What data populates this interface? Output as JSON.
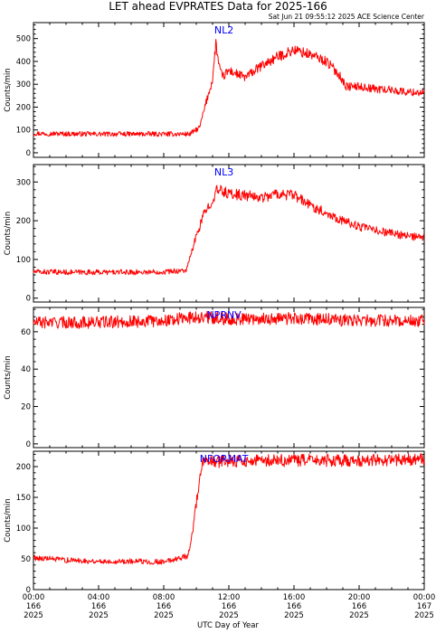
{
  "title": "LET ahead EVPRATES Data for 2025-166",
  "subtitle": "Sat Jun 21 09:55:12 2025 ACE Science Center",
  "xlabel": "UTC Day of Year",
  "colors": {
    "series": "#ff0000",
    "panel_label": "#0000ff",
    "axes": "#000000"
  },
  "x_ticks": [
    {
      "time": "00:00",
      "doy": "166",
      "year": "2025",
      "hour": 0
    },
    {
      "time": "04:00",
      "doy": "166",
      "year": "2025",
      "hour": 4
    },
    {
      "time": "08:00",
      "doy": "166",
      "year": "2025",
      "hour": 8
    },
    {
      "time": "12:00",
      "doy": "166",
      "year": "2025",
      "hour": 12
    },
    {
      "time": "16:00",
      "doy": "166",
      "year": "2025",
      "hour": 16
    },
    {
      "time": "20:00",
      "doy": "166",
      "year": "2025",
      "hour": 20
    },
    {
      "time": "00:00",
      "doy": "167",
      "year": "2025",
      "hour": 24
    }
  ],
  "chart_data": [
    {
      "type": "line",
      "series_name": "NL2",
      "ylabel": "Counts/min",
      "ylim": [
        -20,
        570
      ],
      "yticks": [
        0,
        100,
        200,
        300,
        400,
        500
      ],
      "xlim": [
        0,
        24
      ],
      "x": [
        0,
        2,
        4,
        6,
        8,
        9.6,
        10.2,
        10.6,
        11.0,
        11.2,
        11.4,
        11.6,
        12,
        13,
        14,
        15,
        16,
        17,
        18,
        18.8,
        19.2,
        20,
        21,
        22,
        23,
        24
      ],
      "y": [
        85,
        83,
        82,
        82,
        82,
        82,
        110,
        220,
        320,
        480,
        380,
        330,
        360,
        330,
        380,
        420,
        450,
        430,
        400,
        340,
        290,
        290,
        280,
        275,
        265,
        265
      ]
    },
    {
      "type": "line",
      "series_name": "NL3",
      "ylabel": "Counts/min",
      "ylim": [
        -10,
        345
      ],
      "yticks": [
        0,
        100,
        200,
        300
      ],
      "xlim": [
        0,
        24
      ],
      "x": [
        0,
        2,
        4,
        6,
        8,
        9.4,
        10.0,
        10.5,
        11.0,
        11.3,
        12,
        13,
        14,
        15,
        16,
        17,
        18,
        19,
        20,
        21,
        22,
        23,
        24
      ],
      "y": [
        68,
        67,
        67,
        67,
        68,
        72,
        160,
        220,
        255,
        280,
        270,
        265,
        260,
        270,
        265,
        240,
        220,
        200,
        185,
        175,
        168,
        160,
        155
      ]
    },
    {
      "type": "line",
      "series_name": "NPRNV",
      "ylabel": "Counts/min",
      "ylim": [
        -2,
        73
      ],
      "yticks": [
        0,
        20,
        40,
        60
      ],
      "xlim": [
        0,
        24
      ],
      "x": [
        0,
        4,
        8,
        10,
        12,
        16,
        20,
        24
      ],
      "y": [
        65,
        65,
        66,
        68,
        67,
        67,
        66,
        66
      ]
    },
    {
      "type": "line",
      "series_name": "NFORMAT",
      "ylabel": "Counts/min",
      "ylim": [
        0,
        225
      ],
      "yticks": [
        0,
        50,
        100,
        150,
        200
      ],
      "xlim": [
        0,
        24
      ],
      "x": [
        0,
        2,
        4,
        6,
        8,
        9.5,
        9.8,
        10.1,
        10.4,
        10.7,
        11.0,
        12,
        16,
        20,
        24
      ],
      "y": [
        52,
        48,
        46,
        46,
        45,
        55,
        100,
        160,
        205,
        208,
        208,
        209,
        210,
        210,
        212
      ]
    }
  ]
}
